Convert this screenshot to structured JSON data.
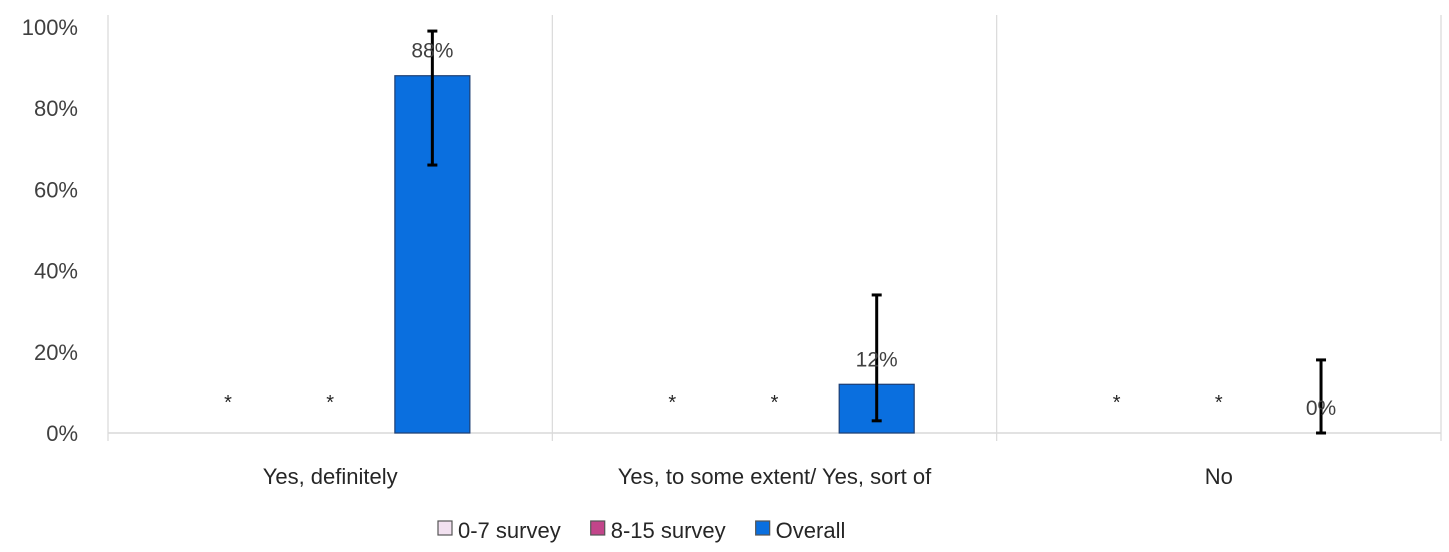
{
  "chart_data": {
    "type": "bar",
    "categories": [
      "Yes, definitely",
      "Yes, to some extent/ Yes, sort of",
      "No"
    ],
    "series": [
      {
        "name": "0-7 survey",
        "values": [
          null,
          null,
          null
        ],
        "labels": [
          "*",
          "*",
          "*"
        ],
        "color": "#f2e1f0"
      },
      {
        "name": "8-15 survey",
        "values": [
          null,
          null,
          null
        ],
        "labels": [
          "*",
          "*",
          "*"
        ],
        "color": "#c2458a"
      },
      {
        "name": "Overall",
        "values": [
          88,
          12,
          0
        ],
        "labels": [
          "88%",
          "12%",
          "0%"
        ],
        "color": "#0a6fdf",
        "error_low": [
          66,
          3,
          0
        ],
        "error_high": [
          99,
          34,
          18
        ]
      }
    ],
    "yticks": [
      "0%",
      "20%",
      "40%",
      "60%",
      "80%",
      "100%"
    ],
    "ylim": [
      0,
      100
    ],
    "grid": "vertical category separators",
    "legend_position": "bottom-center"
  }
}
